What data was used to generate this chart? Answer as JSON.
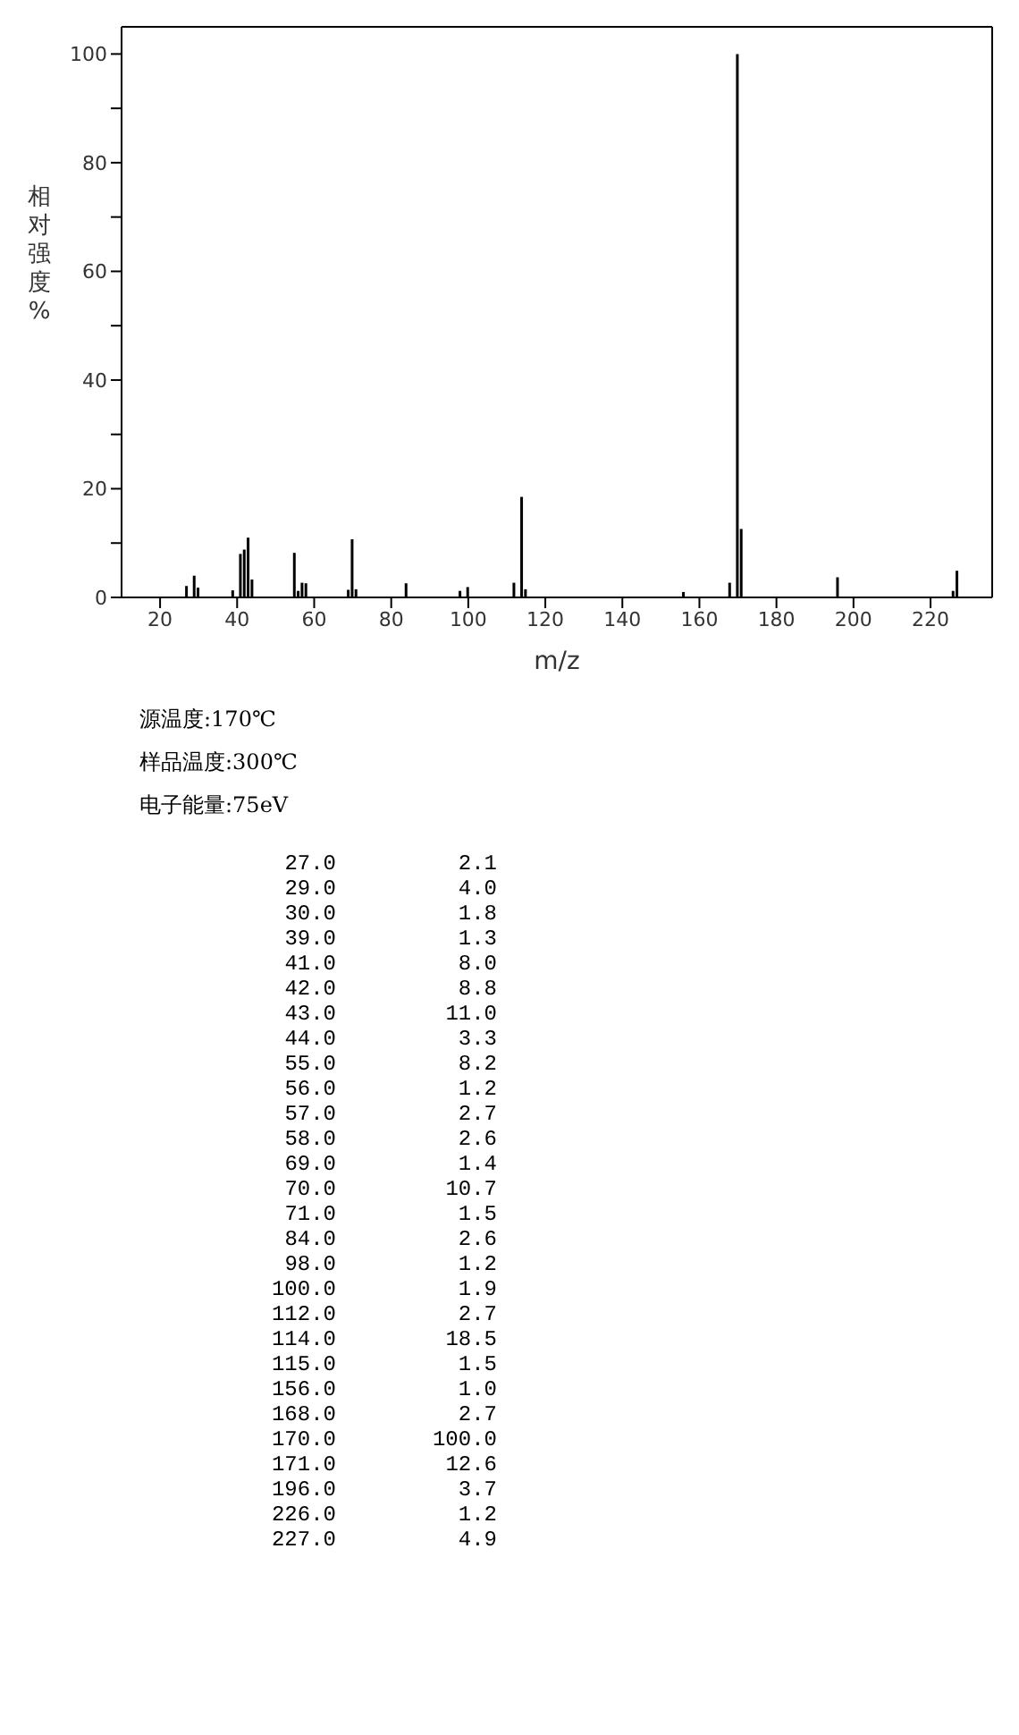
{
  "chart_data": {
    "type": "bar",
    "xlabel": "m/z",
    "ylabel": "相对强度%",
    "x": [
      27,
      29,
      30,
      39,
      41,
      42,
      43,
      44,
      55,
      56,
      57,
      58,
      69,
      70,
      71,
      84,
      98,
      100,
      112,
      114,
      115,
      156,
      168,
      170,
      171,
      196,
      226,
      227
    ],
    "values": [
      2.1,
      4.0,
      1.8,
      1.3,
      8.0,
      8.8,
      11.0,
      3.3,
      8.2,
      1.2,
      2.7,
      2.6,
      1.4,
      10.7,
      1.5,
      2.6,
      1.2,
      1.9,
      2.7,
      18.5,
      1.5,
      1.0,
      2.7,
      100.0,
      12.6,
      3.7,
      1.2,
      4.9
    ],
    "color": "#000000",
    "xlim": [
      10,
      236
    ],
    "ylim": [
      0,
      105
    ],
    "xticks": [
      20,
      40,
      60,
      80,
      100,
      120,
      140,
      160,
      180,
      200,
      220
    ],
    "yticks": [
      0,
      {
        "value": 10,
        "label": null
      },
      20,
      {
        "value": 30,
        "label": null
      },
      40,
      {
        "value": 50,
        "label": null
      },
      60,
      {
        "value": 70,
        "label": null
      },
      80,
      {
        "value": 90,
        "label": null
      },
      100
    ],
    "grid": false,
    "legend": false,
    "annotations": [
      "源温度:170℃",
      "样品温度:300℃",
      "电子能量:75eV",
      "27.0 2.1",
      "29.0 4.0",
      "30.0 1.8",
      "39.0 1.3",
      "41.0 8.0",
      "42.0 8.8",
      "43.0 11.0",
      "44.0 3.3",
      "55.0 8.2",
      "56.0 1.2",
      "57.0 2.7",
      "58.0 2.6",
      "69.0 1.4",
      "70.0 10.7",
      "71.0 1.5",
      "84.0 2.6",
      "98.0 1.2",
      "100.0 1.9",
      "112.0 2.7",
      "114.0 18.5",
      "115.0 1.5",
      "156.0 1.0",
      "168.0 2.7",
      "170.0 100.0",
      "171.0 12.6",
      "196.0 3.7",
      "226.0 1.2",
      "227.0 4.9"
    ]
  }
}
